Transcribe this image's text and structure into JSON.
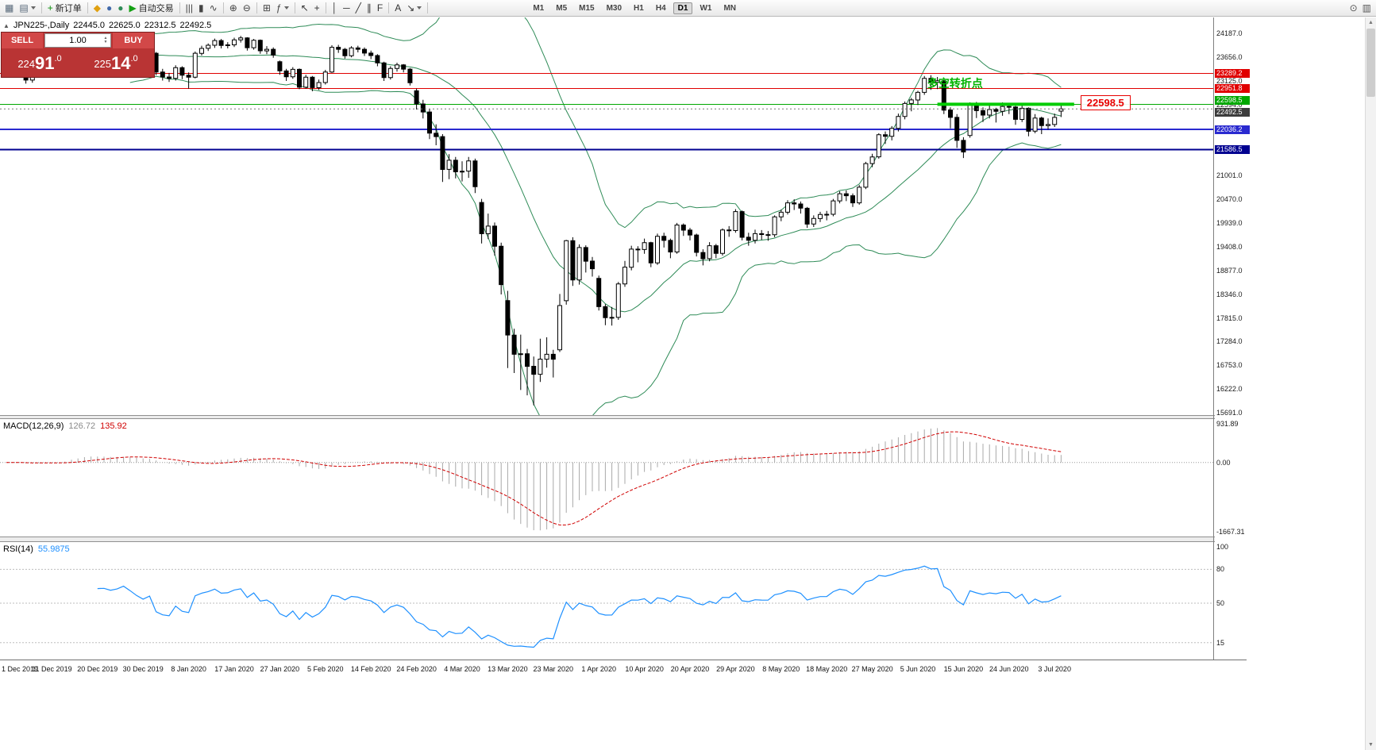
{
  "toolbar": {
    "items": [
      {
        "name": "new-chart",
        "glyph": "▦",
        "color": "#556677"
      },
      {
        "name": "chart-profiles",
        "glyph": "▤",
        "color": "#556677",
        "caret": true
      },
      {
        "sep": true
      },
      {
        "name": "new-order",
        "glyph": "+",
        "color": "#0a8f0a",
        "label": "新订单"
      },
      {
        "sep": true
      },
      {
        "name": "metaeditor",
        "glyph": "◆",
        "color": "#e0a010"
      },
      {
        "name": "market-watch",
        "glyph": "●",
        "color": "#4169aa"
      },
      {
        "name": "strategy-tester",
        "glyph": "●",
        "color": "#2e8b57"
      },
      {
        "name": "autotrading",
        "glyph": "▶",
        "color": "#14a014",
        "label": "自动交易"
      },
      {
        "sep": true
      },
      {
        "name": "bar-chart-mode",
        "glyph": "|||",
        "color": "#444444"
      },
      {
        "name": "candlestick-mode",
        "glyph": "▮",
        "color": "#444444"
      },
      {
        "name": "line-chart-mode",
        "glyph": "∿",
        "color": "#444444"
      },
      {
        "sep": true
      },
      {
        "name": "zoom-in",
        "glyph": "⊕",
        "color": "#444444"
      },
      {
        "name": "zoom-out",
        "glyph": "⊖",
        "color": "#444444"
      },
      {
        "sep": true
      },
      {
        "name": "tile-windows",
        "glyph": "⊞",
        "color": "#444444"
      },
      {
        "name": "indicators-list",
        "glyph": "ƒ",
        "color": "#444444",
        "caret": true
      },
      {
        "sep": true
      },
      {
        "name": "cursor-tool",
        "glyph": "↖",
        "color": "#333333"
      },
      {
        "name": "crosshair-tool",
        "glyph": "+",
        "color": "#333333"
      },
      {
        "sep": true
      },
      {
        "name": "vertical-line-tool",
        "glyph": "│",
        "color": "#333333"
      },
      {
        "name": "horizontal-line-tool",
        "glyph": "─",
        "color": "#333333"
      },
      {
        "name": "trendline-tool",
        "glyph": "╱",
        "color": "#333333"
      },
      {
        "name": "channel-tool",
        "glyph": "∥",
        "color": "#333333"
      },
      {
        "name": "fibonacci-tool",
        "glyph": "F",
        "color": "#333333"
      },
      {
        "sep": true
      },
      {
        "name": "text-tool",
        "glyph": "A",
        "color": "#333333"
      },
      {
        "name": "arrows-tool",
        "glyph": "↘",
        "color": "#333333",
        "caret": true
      },
      {
        "sep": true
      }
    ],
    "timeframes": [
      "M1",
      "M5",
      "M15",
      "M30",
      "H1",
      "H4",
      "D1",
      "W1",
      "MN"
    ],
    "active_timeframe": "D1",
    "right_items": [
      {
        "name": "search",
        "glyph": "⊙"
      },
      {
        "name": "layout-panels",
        "glyph": "▥"
      }
    ]
  },
  "symbol_bar": {
    "collapse_glyph": "▲",
    "symbol": "JPN225-,Daily",
    "open": "22445.0",
    "high": "22625.0",
    "low": "22312.5",
    "close": "22492.5"
  },
  "trade_panel": {
    "sell_label": "SELL",
    "buy_label": "BUY",
    "volume": "1.00",
    "sell_price": "22491.0",
    "buy_price": "22514.0"
  },
  "chart_data": {
    "type": "candlestick",
    "symbol": "JPN225-",
    "timeframe": "Daily",
    "ohlc_current": {
      "open": 22445.0,
      "high": 22625.0,
      "low": 22312.5,
      "close": 22492.5
    },
    "price_axis_labels": [
      "24187.0",
      "23656.0",
      "23125.0",
      "22594.0",
      "22063.0",
      "21532.0",
      "21001.0",
      "20470.0",
      "19939.0",
      "19408.0",
      "18877.0",
      "18346.0",
      "17815.0",
      "17284.0",
      "16753.0",
      "16222.0",
      "15691.0"
    ],
    "price_axis_range": {
      "top": 24187.0,
      "bottom": 15691.0
    },
    "time_labels": [
      "1 Dec 2019",
      "11 Dec 2019",
      "20 Dec 2019",
      "30 Dec 2019",
      "8 Jan 2020",
      "17 Jan 2020",
      "27 Jan 2020",
      "5 Feb 2020",
      "14 Feb 2020",
      "24 Feb 2020",
      "4 Mar 2020",
      "13 Mar 2020",
      "23 Mar 2020",
      "1 Apr 2020",
      "10 Apr 2020",
      "20 Apr 2020",
      "29 Apr 2020",
      "8 May 2020",
      "18 May 2020",
      "27 May 2020",
      "5 Jun 2020",
      "15 Jun 2020",
      "24 Jun 2020",
      "3 Jul 2020"
    ],
    "bars_per_label": 7,
    "hlines": [
      {
        "price": 23289.2,
        "label": "23289.2",
        "color": "#e00000",
        "width": 1
      },
      {
        "price": 22951.8,
        "label": "22951.8",
        "color": "#e00000",
        "width": 1
      },
      {
        "price": 22598.5,
        "label": "22598.5",
        "color": "#00a800",
        "width": 1
      },
      {
        "price": 22036.2,
        "label": "22036.2",
        "color": "#2a2ad0",
        "width": 2
      },
      {
        "price": 21586.5,
        "label": "21586.5",
        "color": "#000090",
        "width": 2
      }
    ],
    "current_price": {
      "value": 22492.5,
      "label": "22492.5",
      "label_bg": "#3c3c3c"
    },
    "macd": {
      "label": "MACD(12,26,9)",
      "value": "126.72",
      "signal_value": "135.92",
      "axis_labels": [
        "931.89",
        "0.00",
        "-1667.31"
      ],
      "axis_values": [
        931.89,
        0,
        -1667.31
      ]
    },
    "rsi": {
      "label": "RSI(14)",
      "value": "55.9875",
      "axis_labels": [
        "100",
        "80",
        "50",
        "15"
      ],
      "axis_values": [
        100,
        80,
        50,
        15
      ],
      "levels": [
        80,
        50,
        15
      ]
    },
    "annotations": {
      "pivot_text": {
        "text": "多空转折点",
        "color": "#00b300",
        "bar_index": 149,
        "price": 23085
      },
      "pivot_line": {
        "price": 22598.5,
        "from_bar": 143,
        "to_bar": 164,
        "color": "#00cc00",
        "width": 4
      },
      "price_callout": {
        "text": "22598.5",
        "price": 22598.5,
        "color": "#e80000"
      }
    },
    "candles": [
      [
        23300,
        23450,
        23230,
        23380
      ],
      [
        23380,
        23480,
        23310,
        23420
      ],
      [
        23420,
        23470,
        23280,
        23350
      ],
      [
        23350,
        23390,
        23060,
        23140
      ],
      [
        23140,
        23370,
        23080,
        23300
      ],
      [
        23300,
        23430,
        23240,
        23360
      ],
      [
        23360,
        23500,
        23300,
        23430
      ],
      [
        23430,
        23480,
        23320,
        23390
      ],
      [
        23390,
        23495,
        23330,
        23425
      ],
      [
        23425,
        23720,
        23380,
        23650
      ],
      [
        23650,
        24090,
        23610,
        24020
      ],
      [
        24020,
        24080,
        23880,
        23950
      ],
      [
        23950,
        24120,
        23900,
        24060
      ],
      [
        24060,
        24110,
        23870,
        23935
      ],
      [
        23935,
        23980,
        23760,
        23820
      ],
      [
        23820,
        23900,
        23770,
        23830
      ],
      [
        23830,
        23880,
        23730,
        23790
      ],
      [
        23790,
        23900,
        23750,
        23830
      ],
      [
        23830,
        23980,
        23800,
        23925
      ],
      [
        23925,
        23970,
        23790,
        23840
      ],
      [
        23840,
        23890,
        23680,
        23740
      ],
      [
        23740,
        23810,
        23590,
        23660
      ],
      [
        23660,
        23790,
        23610,
        23740
      ],
      [
        23740,
        23770,
        23250,
        23320
      ],
      [
        23320,
        23390,
        23130,
        23210
      ],
      [
        23210,
        23300,
        23100,
        23180
      ],
      [
        23180,
        23470,
        23130,
        23420
      ],
      [
        23420,
        23450,
        23160,
        23250
      ],
      [
        23250,
        23310,
        22950,
        23205
      ],
      [
        23205,
        23780,
        23180,
        23740
      ],
      [
        23740,
        23910,
        23690,
        23850
      ],
      [
        23850,
        23960,
        23790,
        23920
      ],
      [
        23920,
        24070,
        23860,
        24025
      ],
      [
        24025,
        24060,
        23850,
        23915
      ],
      [
        23915,
        23990,
        23850,
        23930
      ],
      [
        23930,
        24090,
        23880,
        24040
      ],
      [
        24040,
        24130,
        23980,
        24085
      ],
      [
        24085,
        24100,
        23800,
        23865
      ],
      [
        23865,
        24060,
        23820,
        24030
      ],
      [
        24030,
        24050,
        23730,
        23795
      ],
      [
        23795,
        23900,
        23720,
        23830
      ],
      [
        23830,
        23870,
        23640,
        23700
      ],
      [
        23550,
        23580,
        23260,
        23345
      ],
      [
        23345,
        23390,
        23120,
        23215
      ],
      [
        23215,
        23430,
        23170,
        23380
      ],
      [
        23380,
        23400,
        22935,
        22980
      ],
      [
        22980,
        23260,
        22950,
        23205
      ],
      [
        23205,
        23230,
        22890,
        22970
      ],
      [
        22970,
        23150,
        22920,
        23085
      ],
      [
        23085,
        23370,
        23040,
        23320
      ],
      [
        23320,
        23920,
        23300,
        23875
      ],
      [
        23875,
        23930,
        23750,
        23830
      ],
      [
        23830,
        23860,
        23620,
        23685
      ],
      [
        23685,
        23900,
        23650,
        23860
      ],
      [
        23860,
        23910,
        23760,
        23830
      ],
      [
        23830,
        23870,
        23680,
        23745
      ],
      [
        23745,
        23800,
        23610,
        23690
      ],
      [
        23690,
        23720,
        23450,
        23525
      ],
      [
        23525,
        23550,
        23120,
        23195
      ],
      [
        23195,
        23450,
        23150,
        23400
      ],
      [
        23400,
        23530,
        23330,
        23480
      ],
      [
        23480,
        23500,
        23310,
        23385
      ],
      [
        23385,
        23410,
        23020,
        23080
      ],
      [
        22900,
        22950,
        22480,
        22605
      ],
      [
        22605,
        22700,
        22280,
        22425
      ],
      [
        22425,
        22490,
        21820,
        21950
      ],
      [
        21950,
        22150,
        21680,
        21875
      ],
      [
        21875,
        21930,
        20860,
        21140
      ],
      [
        21140,
        21480,
        20920,
        21345
      ],
      [
        21345,
        21420,
        20940,
        21085
      ],
      [
        21085,
        21320,
        20870,
        21100
      ],
      [
        21100,
        21420,
        20950,
        21330
      ],
      [
        21330,
        21380,
        20610,
        20750
      ],
      [
        20400,
        20480,
        19480,
        19700
      ],
      [
        19700,
        20150,
        19580,
        19870
      ],
      [
        19870,
        19950,
        19210,
        19420
      ],
      [
        19420,
        19500,
        18340,
        18560
      ],
      [
        18200,
        18420,
        16690,
        17430
      ],
      [
        17430,
        17570,
        16580,
        17000
      ],
      [
        17000,
        17440,
        16200,
        17010
      ],
      [
        17010,
        17120,
        16080,
        16730
      ],
      [
        16730,
        16950,
        15855,
        16550
      ],
      [
        16550,
        17350,
        16380,
        16890
      ],
      [
        16890,
        17380,
        16700,
        17000
      ],
      [
        17000,
        17100,
        16480,
        16890
      ],
      [
        17100,
        18350,
        17050,
        18090
      ],
      [
        18200,
        19560,
        18110,
        19545
      ],
      [
        19545,
        19620,
        18530,
        18665
      ],
      [
        18665,
        19460,
        18560,
        19390
      ],
      [
        19390,
        19440,
        18830,
        19085
      ],
      [
        19085,
        19180,
        18740,
        18915
      ],
      [
        18700,
        18760,
        17980,
        18065
      ],
      [
        18065,
        18120,
        17650,
        17820
      ],
      [
        17820,
        18060,
        17640,
        17825
      ],
      [
        17825,
        18620,
        17770,
        18575
      ],
      [
        18575,
        19090,
        18510,
        18950
      ],
      [
        18950,
        19430,
        18880,
        19355
      ],
      [
        19355,
        19420,
        19060,
        19345
      ],
      [
        19345,
        19590,
        19250,
        19500
      ],
      [
        19500,
        19520,
        18950,
        19045
      ],
      [
        19045,
        19700,
        19000,
        19640
      ],
      [
        19640,
        19720,
        19390,
        19550
      ],
      [
        19550,
        19590,
        19150,
        19290
      ],
      [
        19290,
        19940,
        19250,
        19895
      ],
      [
        19895,
        19930,
        19650,
        19780
      ],
      [
        19780,
        19830,
        19550,
        19670
      ],
      [
        19670,
        19700,
        19190,
        19280
      ],
      [
        19280,
        19350,
        18990,
        19140
      ],
      [
        19140,
        19510,
        19080,
        19430
      ],
      [
        19430,
        19470,
        19150,
        19260
      ],
      [
        19260,
        19820,
        19210,
        19785
      ],
      [
        19785,
        19870,
        19630,
        19770
      ],
      [
        19770,
        20250,
        19720,
        20195
      ],
      [
        20195,
        20220,
        19550,
        19620
      ],
      [
        19620,
        19720,
        19430,
        19550
      ],
      [
        19550,
        19790,
        19480,
        19700
      ],
      [
        19700,
        19780,
        19560,
        19680
      ],
      [
        19680,
        19760,
        19540,
        19675
      ],
      [
        19675,
        20110,
        19620,
        20075
      ],
      [
        20075,
        20240,
        19980,
        20180
      ],
      [
        20180,
        20450,
        20130,
        20390
      ],
      [
        20390,
        20470,
        20230,
        20365
      ],
      [
        20365,
        20420,
        20150,
        20270
      ],
      [
        20270,
        20300,
        19830,
        19915
      ],
      [
        19915,
        20110,
        19850,
        20040
      ],
      [
        20040,
        20190,
        19960,
        20130
      ],
      [
        20130,
        20210,
        20000,
        20135
      ],
      [
        20135,
        20480,
        20090,
        20435
      ],
      [
        20435,
        20650,
        20380,
        20595
      ],
      [
        20595,
        20670,
        20430,
        20550
      ],
      [
        20550,
        20600,
        20300,
        20390
      ],
      [
        20390,
        20790,
        20350,
        20740
      ],
      [
        20740,
        21310,
        20700,
        21270
      ],
      [
        21270,
        21490,
        21190,
        21420
      ],
      [
        21420,
        21950,
        21380,
        21915
      ],
      [
        21915,
        21990,
        21710,
        21880
      ],
      [
        21880,
        22110,
        21790,
        22060
      ],
      [
        22060,
        22390,
        21990,
        22325
      ],
      [
        22325,
        22660,
        22260,
        22615
      ],
      [
        22615,
        22740,
        22440,
        22695
      ],
      [
        22695,
        22900,
        22580,
        22865
      ],
      [
        22865,
        23230,
        22810,
        23180
      ],
      [
        23180,
        23250,
        22920,
        23090
      ],
      [
        23090,
        23210,
        22940,
        23125
      ],
      [
        23125,
        23140,
        22380,
        22470
      ],
      [
        22470,
        22530,
        22060,
        22305
      ],
      [
        22305,
        22380,
        21620,
        21790
      ],
      [
        21790,
        21860,
        21395,
        21530
      ],
      [
        21900,
        22640,
        21850,
        22580
      ],
      [
        22580,
        22650,
        22290,
        22455
      ],
      [
        22455,
        22530,
        22200,
        22355
      ],
      [
        22355,
        22600,
        22280,
        22480
      ],
      [
        22480,
        22520,
        22190,
        22440
      ],
      [
        22440,
        22640,
        22340,
        22550
      ],
      [
        22550,
        22620,
        22380,
        22535
      ],
      [
        22535,
        22560,
        22140,
        22260
      ],
      [
        22260,
        22580,
        22200,
        22510
      ],
      [
        22510,
        22530,
        21880,
        21995
      ],
      [
        21995,
        22380,
        21950,
        22290
      ],
      [
        22290,
        22320,
        21930,
        22120
      ],
      [
        22120,
        22280,
        22030,
        22145
      ],
      [
        22145,
        22390,
        22090,
        22305
      ],
      [
        22445,
        22625,
        22312.5,
        22492.5
      ]
    ]
  }
}
